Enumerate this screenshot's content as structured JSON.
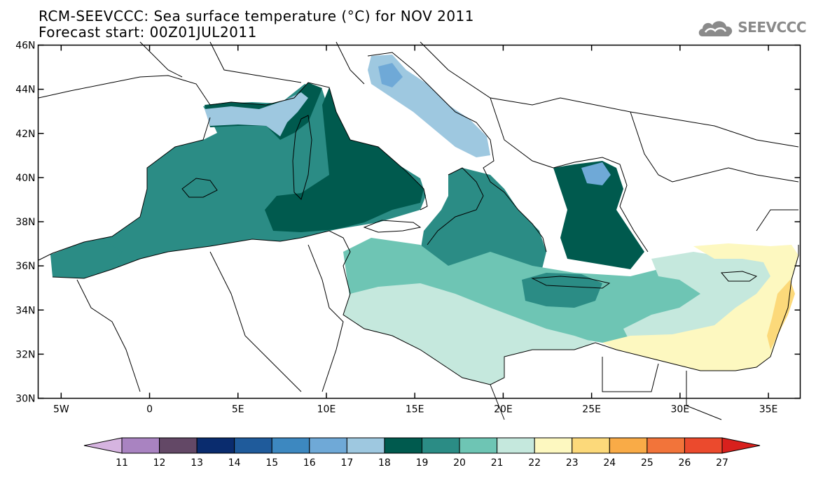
{
  "title_line1": "RCM-SEEVCCC: Sea surface temperature (°C) for NOV 2011",
  "title_line2": "Forecast start: 00Z01JUL2011",
  "logo_text": "SEEVCCC",
  "lat_ticks": [
    "46N",
    "44N",
    "42N",
    "40N",
    "38N",
    "36N",
    "34N",
    "32N",
    "30N"
  ],
  "lon_ticks": [
    "5W",
    "0",
    "5E",
    "10E",
    "15E",
    "20E",
    "25E",
    "30E",
    "35E"
  ],
  "colorbar": {
    "labels": [
      "11",
      "12",
      "13",
      "14",
      "15",
      "16",
      "17",
      "18",
      "19",
      "20",
      "21",
      "22",
      "23",
      "24",
      "25",
      "26",
      "27"
    ],
    "colors": [
      "#d6b4e0",
      "#a983c1",
      "#634866",
      "#0a2c6e",
      "#1f5b9b",
      "#3d88c0",
      "#6fa9d7",
      "#9ec8e0",
      "#005a4e",
      "#2b8c85",
      "#6ec5b4",
      "#c5e8dd",
      "#fdf8c0",
      "#fcd97a",
      "#f9ab47",
      "#f2743a",
      "#eb4a2d",
      "#d8201d"
    ]
  },
  "map_colors": {
    "t17": "#9ec8e0",
    "t16": "#6fa9d7",
    "t18": "#005a4e",
    "t19": "#2b8c85",
    "t20": "#6ec5b4",
    "t21": "#c5e8dd",
    "t22": "#fdf8c0",
    "t23": "#fcd97a"
  }
}
